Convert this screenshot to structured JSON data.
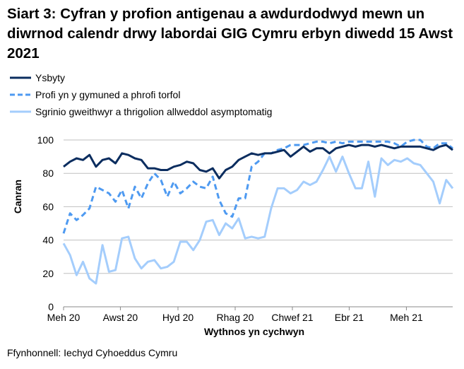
{
  "chart_data": {
    "type": "line",
    "title": "Siart 3: Cyfran y profion antigenau a awdurdodwyd mewn un diwrnod calendr drwy labordai GIG Cymru erbyn diwedd 15 Awst 2021",
    "xlabel": "Wythnos yn cychwyn",
    "ylabel": "Canran",
    "ylim": [
      0,
      100
    ],
    "yticks": [
      0,
      20,
      40,
      60,
      80,
      100
    ],
    "xticks": [
      "Meh 20",
      "Awst 20",
      "Hyd 20",
      "Rhag 20",
      "Chwef 21",
      "Ebr 21",
      "Meh 21"
    ],
    "grid": true,
    "legend": "top-left",
    "series": [
      {
        "name": "Ysbyty",
        "color": "#0b2d5f",
        "style": "solid",
        "values": [
          84,
          87,
          89,
          88,
          91,
          84,
          88,
          89,
          86,
          92,
          91,
          89,
          88,
          83,
          83,
          82,
          82,
          84,
          85,
          87,
          86,
          82,
          81,
          83,
          77,
          82,
          84,
          88,
          90,
          92,
          91,
          92,
          92,
          93,
          94,
          90,
          93,
          96,
          93,
          95,
          95,
          92,
          95,
          96,
          97,
          96,
          97,
          97,
          96,
          97,
          96,
          95,
          96,
          96,
          96,
          96,
          95,
          94,
          96,
          97,
          94
        ]
      },
      {
        "name": "Profi yn y gymuned a phrofi torfol",
        "color": "#4e9af1",
        "style": "dashed",
        "values": [
          44,
          56,
          52,
          55,
          59,
          72,
          70,
          68,
          63,
          70,
          59,
          72,
          65,
          74,
          80,
          76,
          66,
          75,
          68,
          71,
          75,
          72,
          71,
          78,
          64,
          56,
          54,
          65,
          65,
          84,
          87,
          92,
          92,
          94,
          95,
          97,
          97,
          97,
          98,
          99,
          99,
          98,
          99,
          98,
          99,
          99,
          99,
          99,
          99,
          99,
          99,
          98,
          96,
          99,
          100,
          100,
          96,
          95,
          98,
          98,
          95
        ]
      },
      {
        "name": "Sgrinio gweithwyr a thrigolion allweddol asymptomatig",
        "color": "#a4cdfc",
        "style": "solid",
        "values": [
          38,
          31,
          19,
          27,
          17,
          14,
          37,
          21,
          22,
          41,
          42,
          29,
          23,
          27,
          28,
          23,
          24,
          27,
          39,
          39,
          34,
          40,
          51,
          52,
          43,
          50,
          47,
          53,
          41,
          42,
          41,
          42,
          59,
          71,
          71,
          68,
          70,
          75,
          73,
          75,
          82,
          90,
          81,
          90,
          80,
          71,
          71,
          87,
          66,
          89,
          85,
          88,
          87,
          89,
          86,
          85,
          80,
          75,
          62,
          76,
          71
        ]
      }
    ]
  },
  "source": "Ffynhonnell: Iechyd Cyhoeddus Cymru"
}
